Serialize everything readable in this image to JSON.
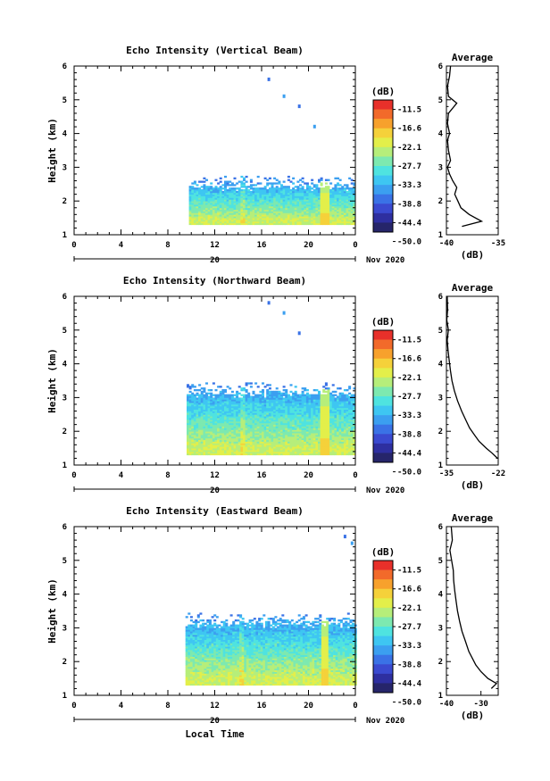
{
  "footer_xlabel": "Local Time",
  "panels": [
    {
      "title": "Echo Intensity (Vertical Beam)",
      "ylabel": "Height (km)",
      "date_label": "20",
      "month_label": "Nov 2020",
      "avg_title": "Average",
      "avg_xticks": [
        "-40",
        "-35"
      ],
      "avg_xlabel": "(dB)"
    },
    {
      "title": "Echo Intensity (Northward Beam)",
      "ylabel": "Height (km)",
      "date_label": "20",
      "month_label": "Nov 2020",
      "avg_title": "Average",
      "avg_xticks": [
        "-35",
        "-22"
      ],
      "avg_xlabel": "(dB)"
    },
    {
      "title": "Echo Intensity (Eastward Beam)",
      "ylabel": "Height (km)",
      "date_label": "20",
      "month_label": "Nov 2020",
      "avg_title": "Average",
      "avg_xticks": [
        "-40",
        "-30"
      ],
      "avg_xlabel": "(dB)"
    }
  ],
  "colorbar": {
    "unit": "(dB)",
    "labels": [
      "-11.5",
      "-16.6",
      "-22.1",
      "-27.7",
      "-33.3",
      "-38.8",
      "-44.4",
      "-50.0"
    ],
    "colors": [
      "#e8302a",
      "#f26a2a",
      "#f7a12c",
      "#f5d13a",
      "#e3ef4a",
      "#b6ee7a",
      "#7de9b0",
      "#4fe3e0",
      "#3ec6f2",
      "#3b9ff0",
      "#3a72e6",
      "#3a4ad0",
      "#2e2fa0",
      "#26256a"
    ]
  },
  "chart_data": [
    {
      "type": "heatmap",
      "title": "Echo Intensity (Vertical Beam)",
      "xlabel": "",
      "ylabel": "Height (km)",
      "x_ticks": [
        "0",
        "4",
        "8",
        "12",
        "16",
        "20",
        "0"
      ],
      "y_ticks": [
        "1",
        "2",
        "3",
        "4",
        "5",
        "6"
      ],
      "xlim": [
        0,
        24
      ],
      "ylim": [
        1,
        6
      ],
      "data_extent_hours": [
        9.8,
        24
      ],
      "echo_top_km": 2.5,
      "scattered_echo_km": [
        5.6,
        5.1,
        4.8,
        4.2
      ],
      "average_profile": {
        "xlim": [
          -40,
          -35
        ],
        "height_km": [
          1.25,
          1.4,
          1.6,
          1.8,
          2.0,
          2.2,
          2.4,
          2.6,
          2.8,
          3.0,
          3.2,
          3.5,
          3.8,
          4.0,
          4.3,
          4.6,
          4.9,
          5.1,
          5.4,
          5.7,
          6.0
        ],
        "db": [
          -38.5,
          -36.6,
          -37.8,
          -38.6,
          -38.9,
          -39.2,
          -39.0,
          -39.4,
          -39.7,
          -39.9,
          -39.6,
          -39.8,
          -39.9,
          -39.7,
          -39.9,
          -39.8,
          -39.0,
          -39.8,
          -39.9,
          -39.7,
          -39.6
        ]
      }
    },
    {
      "type": "heatmap",
      "title": "Echo Intensity (Northward Beam)",
      "xlabel": "",
      "ylabel": "Height (km)",
      "x_ticks": [
        "0",
        "4",
        "8",
        "12",
        "16",
        "20",
        "0"
      ],
      "y_ticks": [
        "1",
        "2",
        "3",
        "4",
        "5",
        "6"
      ],
      "xlim": [
        0,
        24
      ],
      "ylim": [
        1,
        6
      ],
      "data_extent_hours": [
        9.6,
        24
      ],
      "echo_top_km": 3.2,
      "scattered_echo_km": [
        5.8,
        5.5,
        4.9
      ],
      "average_profile": {
        "xlim": [
          -35,
          -22
        ],
        "height_km": [
          1.2,
          1.35,
          1.5,
          1.7,
          1.9,
          2.1,
          2.3,
          2.6,
          2.9,
          3.2,
          3.5,
          3.8,
          4.1,
          4.4,
          4.7,
          5.0,
          5.3,
          5.6,
          6.0
        ],
        "db": [
          -22.2,
          -23.5,
          -25.0,
          -26.8,
          -28.0,
          -29.2,
          -30.0,
          -31.2,
          -32.2,
          -33.0,
          -33.6,
          -34.0,
          -34.3,
          -34.6,
          -34.8,
          -34.5,
          -34.9,
          -34.7,
          -34.8
        ]
      }
    },
    {
      "type": "heatmap",
      "title": "Echo Intensity (Eastward Beam)",
      "xlabel": "Local Time",
      "ylabel": "Height (km)",
      "x_ticks": [
        "0",
        "4",
        "8",
        "12",
        "16",
        "20",
        "0"
      ],
      "y_ticks": [
        "1",
        "2",
        "3",
        "4",
        "5",
        "6"
      ],
      "xlim": [
        0,
        24
      ],
      "ylim": [
        1,
        6
      ],
      "data_extent_hours": [
        9.5,
        24
      ],
      "echo_top_km": 3.2,
      "scattered_echo_km": [
        5.7,
        5.5
      ],
      "average_profile": {
        "xlim": [
          -40,
          -25
        ],
        "height_km": [
          1.2,
          1.35,
          1.5,
          1.7,
          1.9,
          2.1,
          2.3,
          2.6,
          2.9,
          3.2,
          3.5,
          3.8,
          4.1,
          4.4,
          4.7,
          5.0,
          5.3,
          5.6,
          6.0
        ],
        "db": [
          -27.0,
          -25.5,
          -28.0,
          -30.0,
          -31.5,
          -32.5,
          -33.5,
          -34.5,
          -35.5,
          -36.2,
          -36.8,
          -37.2,
          -37.6,
          -37.9,
          -38.0,
          -38.5,
          -39.0,
          -38.3,
          -38.6
        ]
      }
    }
  ]
}
